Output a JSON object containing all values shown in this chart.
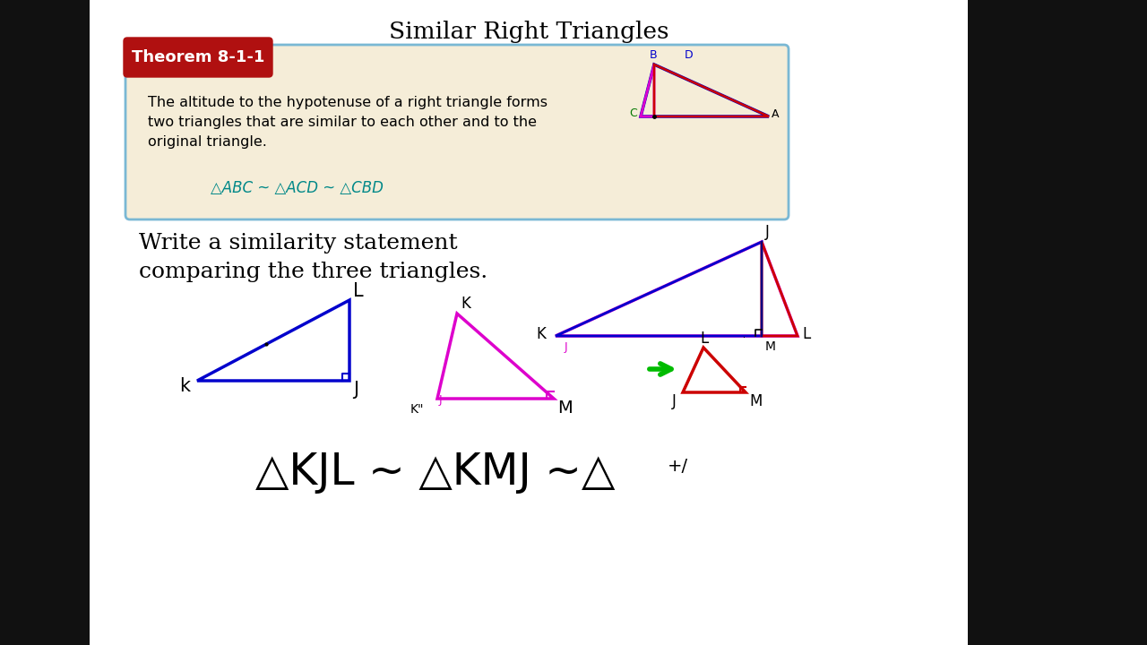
{
  "title": "Similar Right Triangles",
  "outer_bg": "#111111",
  "content_bg": "#ffffff",
  "theorem_box_bg": "#f5edd8",
  "theorem_box_border": "#7ab8d4",
  "theorem_label_bg": "#b01010",
  "theorem_label_text": "Theorem 8-1-1",
  "theorem_text_line1": "The altitude to the hypotenuse of a right triangle forms",
  "theorem_text_line2": "two triangles that are similar to each other and to the",
  "theorem_text_line3": "original triangle.",
  "theorem_formula": "△ABC ~ △ACD ~ △CBD",
  "problem_line1": "Write a similarity statement",
  "problem_line2": "comparing the three triangles.",
  "answer_main": "△KJL ~ △KMJ ~△",
  "answer_suffix": "+/",
  "blue": "#0000cc",
  "magenta": "#dd00cc",
  "red": "#cc0000",
  "green": "#00bb00",
  "teal": "#008888"
}
